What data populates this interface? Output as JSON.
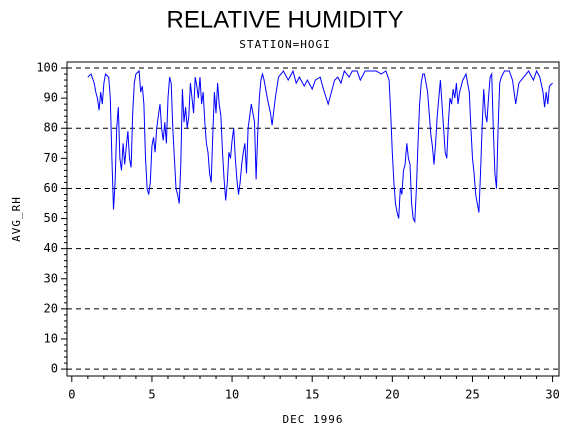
{
  "chart_data": {
    "type": "line",
    "title": "RELATIVE HUMIDITY",
    "subtitle": "STATION=HOGI",
    "x_label": "DEC 1996",
    "y_label": "AVG_RH",
    "xlim": [
      -0.3,
      30.4
    ],
    "ylim": [
      -2.3,
      102
    ],
    "xticks": [
      0,
      5,
      10,
      15,
      20,
      25,
      30
    ],
    "yticks": [
      0,
      10,
      20,
      30,
      40,
      50,
      60,
      70,
      80,
      90,
      100
    ],
    "ygrid": [
      0,
      20,
      40,
      60,
      80,
      100
    ],
    "series": [
      {
        "name": "AVG_RH",
        "color": "#0000ff",
        "x": [
          1.0,
          1.2,
          1.4,
          1.5,
          1.6,
          1.7,
          1.8,
          1.9,
          2.0,
          2.1,
          2.3,
          2.4,
          2.5,
          2.6,
          2.7,
          2.8,
          2.9,
          3.0,
          3.1,
          3.2,
          3.3,
          3.4,
          3.5,
          3.6,
          3.7,
          3.8,
          3.9,
          4.0,
          4.2,
          4.3,
          4.4,
          4.5,
          4.6,
          4.7,
          4.8,
          4.9,
          5.0,
          5.1,
          5.2,
          5.3,
          5.4,
          5.5,
          5.6,
          5.7,
          5.8,
          5.9,
          6.0,
          6.1,
          6.2,
          6.3,
          6.4,
          6.5,
          6.6,
          6.7,
          6.8,
          6.9,
          7.0,
          7.1,
          7.2,
          7.3,
          7.4,
          7.5,
          7.6,
          7.7,
          7.8,
          7.9,
          8.0,
          8.1,
          8.2,
          8.3,
          8.4,
          8.5,
          8.6,
          8.7,
          8.8,
          8.9,
          9.0,
          9.1,
          9.2,
          9.3,
          9.4,
          9.5,
          9.6,
          9.7,
          9.8,
          9.9,
          10.0,
          10.1,
          10.2,
          10.3,
          10.4,
          10.5,
          10.6,
          10.7,
          10.8,
          10.9,
          11.0,
          11.1,
          11.2,
          11.3,
          11.4,
          11.5,
          11.6,
          11.7,
          11.8,
          11.9,
          12.0,
          12.2,
          12.4,
          12.5,
          12.7,
          12.9,
          13.2,
          13.5,
          13.8,
          14.0,
          14.2,
          14.5,
          14.7,
          15.0,
          15.2,
          15.5,
          15.7,
          16.0,
          16.2,
          16.4,
          16.6,
          16.8,
          17.0,
          17.3,
          17.5,
          17.8,
          18.0,
          18.3,
          18.6,
          19.0,
          19.3,
          19.6,
          19.8,
          19.9,
          20.0,
          20.1,
          20.2,
          20.3,
          20.4,
          20.5,
          20.6,
          20.7,
          20.8,
          20.9,
          21.0,
          21.1,
          21.2,
          21.3,
          21.4,
          21.5,
          21.6,
          21.7,
          21.8,
          21.9,
          22.0,
          22.2,
          22.3,
          22.4,
          22.5,
          22.6,
          22.7,
          22.8,
          22.9,
          23.0,
          23.1,
          23.2,
          23.3,
          23.4,
          23.5,
          23.6,
          23.7,
          23.8,
          23.9,
          24.0,
          24.1,
          24.2,
          24.4,
          24.6,
          24.8,
          24.9,
          25.0,
          25.1,
          25.2,
          25.3,
          25.4,
          25.5,
          25.6,
          25.7,
          25.8,
          25.9,
          26.0,
          26.1,
          26.2,
          26.3,
          26.4,
          26.5,
          26.6,
          26.7,
          26.8,
          27.0,
          27.3,
          27.5,
          27.7,
          27.9,
          28.2,
          28.5,
          28.8,
          29.0,
          29.2,
          29.4,
          29.5,
          29.6,
          29.7,
          29.8,
          30.0
        ],
        "values": [
          97,
          98,
          95,
          92,
          90,
          86,
          92,
          88,
          95,
          98,
          97,
          90,
          70,
          53,
          62,
          80,
          87,
          70,
          66,
          75,
          68,
          74,
          79,
          70,
          67,
          85,
          95,
          98,
          99,
          92,
          94,
          88,
          70,
          60,
          58,
          62,
          74,
          77,
          72,
          80,
          84,
          88,
          80,
          76,
          82,
          75,
          90,
          97,
          95,
          80,
          70,
          60,
          58,
          55,
          68,
          93,
          82,
          87,
          80,
          84,
          95,
          90,
          85,
          97,
          94,
          90,
          97,
          88,
          92,
          82,
          75,
          72,
          65,
          62,
          78,
          92,
          85,
          95,
          88,
          84,
          72,
          63,
          56,
          62,
          72,
          70,
          76,
          80,
          70,
          63,
          58,
          62,
          68,
          72,
          75,
          65,
          80,
          84,
          88,
          85,
          82,
          63,
          78,
          90,
          96,
          98,
          96,
          90,
          85,
          81,
          90,
          97,
          99,
          96,
          99,
          95,
          97,
          94,
          96,
          93,
          96,
          97,
          93,
          88,
          92,
          96,
          97,
          95,
          99,
          97,
          99,
          99,
          96,
          99,
          99,
          99,
          98,
          99,
          96,
          85,
          72,
          62,
          55,
          52,
          50,
          60,
          58,
          66,
          68,
          75,
          70,
          68,
          55,
          50,
          49,
          60,
          75,
          88,
          95,
          98,
          98,
          92,
          85,
          78,
          74,
          68,
          75,
          84,
          90,
          96,
          88,
          80,
          72,
          70,
          82,
          90,
          88,
          93,
          90,
          95,
          88,
          92,
          96,
          98,
          92,
          80,
          70,
          65,
          58,
          55,
          52,
          65,
          80,
          93,
          85,
          82,
          90,
          97,
          98,
          80,
          65,
          60,
          80,
          95,
          97,
          99,
          99,
          96,
          88,
          95,
          97,
          99,
          96,
          99,
          97,
          92,
          87,
          92,
          88,
          94,
          95
        ]
      }
    ]
  }
}
